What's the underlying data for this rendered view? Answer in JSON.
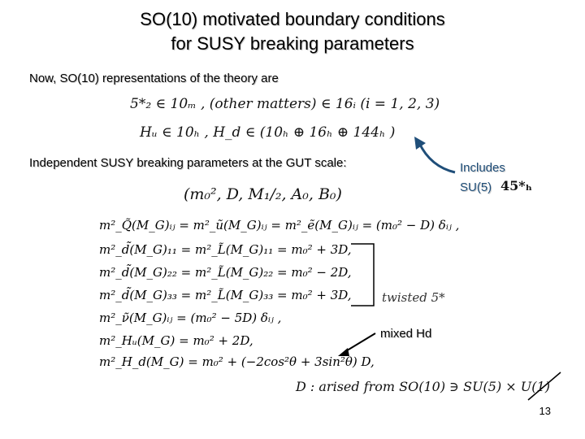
{
  "slide": {
    "title_line1": "SO(10) motivated boundary conditions",
    "title_line2": "for SUSY breaking parameters",
    "intro": "Now, SO(10) representations of the theory are",
    "math_line1": "5*₂ ∈ 10ₘ ,   (other matters) ∈ 16ᵢ  (i = 1, 2, 3)",
    "math_line2": "Hᵤ ∈ 10ₕ ,    H_d ∈ (10ₕ ⊕ 16ₕ ⊕ 144ₕ )",
    "independent_text": "Independent SUSY breaking parameters at the GUT scale:",
    "params": "(m₀², D, M₁/₂, A₀, B₀)",
    "includes_label": "Includes",
    "su5_label": "SU(5)",
    "su5_rep": "45*ₕ",
    "equations": [
      "m²_Q̃(M_G)ᵢⱼ  =  m²_ũ(M_G)ᵢⱼ  =  m²_ẽ(M_G)ᵢⱼ  =  (m₀² − D) δᵢⱼ ,",
      "m²_d̃(M_G)₁₁  =  m²_L̃(M_G)₁₁  =  m₀² + 3D,",
      "m²_d̃(M_G)₂₂  =  m²_L̃(M_G)₂₂  =  m₀² − 2D,",
      "m²_d̃(M_G)₃₃  =  m²_L̃(M_G)₃₃  =  m₀² + 3D,",
      "m²_ν̃(M_G)ᵢⱼ  =  (m₀² − 5D) δᵢⱼ ,",
      "m²_Hᵤ(M_G)  =  m₀² + 2D,",
      "m²_H_d(M_G)  =  m₀² + (−2cos²θ + 3sin²θ) D,"
    ],
    "twisted_label": "twisted  5*",
    "mixed_label": "mixed Hd",
    "d_origin": "D : arised from SO(10) ∋ SU(5) × U(1)",
    "page_number": "13"
  }
}
